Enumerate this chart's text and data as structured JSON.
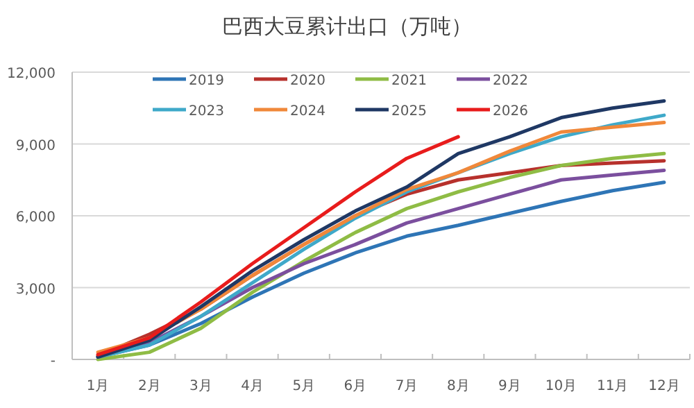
{
  "chart_data": {
    "type": "line",
    "title": "巴西大豆累计出口（万吨）",
    "categories": [
      "1月",
      "2月",
      "3月",
      "4月",
      "5月",
      "6月",
      "7月",
      "8月",
      "9月",
      "10月",
      "11月",
      "12月"
    ],
    "ylim": [
      0,
      12000
    ],
    "yticks": [
      {
        "value": 0,
        "label": "-"
      },
      {
        "value": 3000,
        "label": "3,000"
      },
      {
        "value": 6000,
        "label": "6,000"
      },
      {
        "value": 9000,
        "label": "9,000"
      },
      {
        "value": 12000,
        "label": "12,000"
      }
    ],
    "grid": "y",
    "legend": "top",
    "marker": "none",
    "line_style": "solid",
    "series": [
      {
        "name": "2019",
        "color": "#2e75b6",
        "values": [
          100,
          600,
          1500,
          2600,
          3600,
          4450,
          5150,
          5600,
          6100,
          6600,
          7050,
          7400
        ]
      },
      {
        "name": "2020",
        "color": "#b7312c",
        "values": [
          150,
          1050,
          2100,
          3500,
          4800,
          6000,
          6900,
          7500,
          7800,
          8100,
          8200,
          8300
        ]
      },
      {
        "name": "2021",
        "color": "#8fbc45",
        "values": [
          0,
          300,
          1300,
          2800,
          4100,
          5300,
          6300,
          7000,
          7600,
          8100,
          8400,
          8600
        ]
      },
      {
        "name": "2022",
        "color": "#7b4f9e",
        "values": [
          100,
          700,
          1800,
          3000,
          4000,
          4800,
          5700,
          6300,
          6900,
          7500,
          7700,
          7900
        ]
      },
      {
        "name": "2023",
        "color": "#3fa9c9",
        "values": [
          100,
          600,
          1800,
          3200,
          4600,
          5900,
          7000,
          7800,
          8600,
          9300,
          9800,
          10200
        ]
      },
      {
        "name": "2024",
        "color": "#f0883a",
        "values": [
          300,
          900,
          2100,
          3500,
          4800,
          6000,
          7100,
          7800,
          8700,
          9500,
          9700,
          9900
        ]
      },
      {
        "name": "2025",
        "color": "#1f3864",
        "values": [
          100,
          800,
          2200,
          3700,
          5000,
          6200,
          7200,
          8600,
          9300,
          10100,
          10500,
          10800
        ]
      },
      {
        "name": "2026",
        "color": "#e81c1c",
        "values": [
          200,
          900,
          2400,
          4000,
          5500,
          7000,
          8400,
          9300,
          null,
          null,
          null,
          null
        ]
      }
    ]
  }
}
